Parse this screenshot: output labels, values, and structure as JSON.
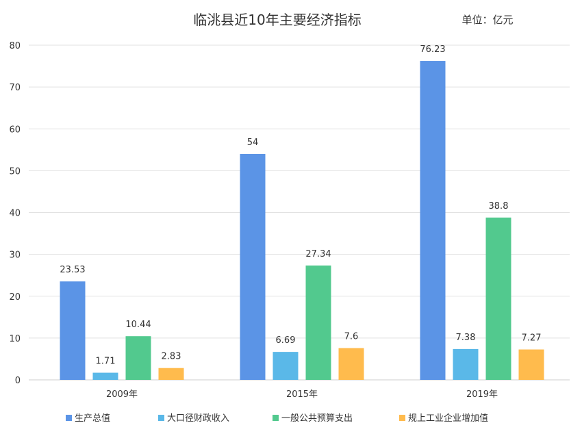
{
  "chart_data": {
    "type": "bar",
    "title": "临洮县近10年主要经济指标",
    "unit": "单位：亿元",
    "categories": [
      "2009年",
      "2015年",
      "2019年"
    ],
    "series": [
      {
        "name": "生产总值",
        "values": [
          23.53,
          54,
          76.23
        ],
        "labels": [
          "23.53",
          "54",
          "76.23"
        ],
        "color": "#5b94e6"
      },
      {
        "name": "大口径财政收入",
        "values": [
          1.71,
          6.69,
          7.38
        ],
        "labels": [
          "1.71",
          "6.69",
          "7.38"
        ],
        "color": "#5ab8e8"
      },
      {
        "name": "一般公共预算支出",
        "values": [
          10.44,
          27.34,
          38.8
        ],
        "labels": [
          "10.44",
          "27.34",
          "38.8"
        ],
        "color": "#52c98e"
      },
      {
        "name": "规上工业企业增加值",
        "values": [
          2.83,
          7.6,
          7.27
        ],
        "labels": [
          "2.83",
          "7.6",
          "7.27"
        ],
        "color": "#ffbb4d"
      }
    ],
    "ylim": [
      0,
      80
    ],
    "yticks": [
      0,
      10,
      20,
      30,
      40,
      50,
      60,
      70,
      80
    ],
    "grid": true,
    "legend_position": "bottom"
  }
}
